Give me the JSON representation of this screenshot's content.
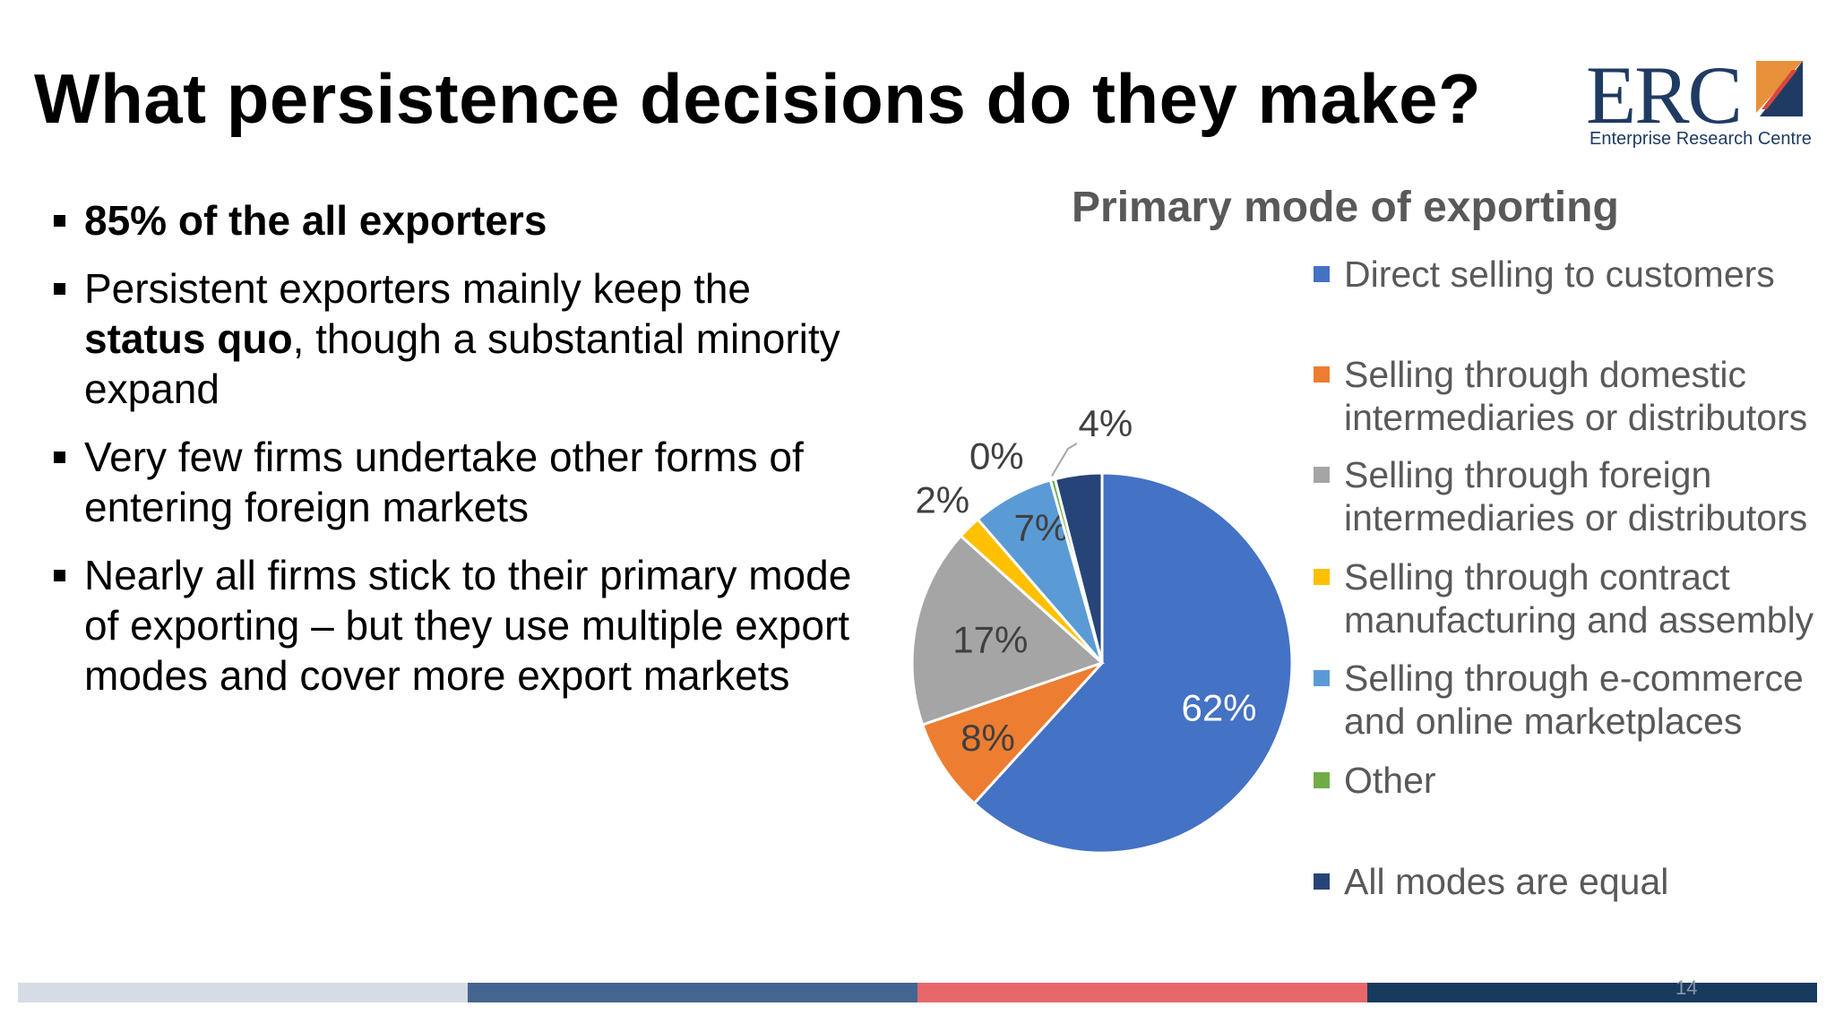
{
  "slide": {
    "title": "What persistence decisions do they make?",
    "page_number": "14"
  },
  "logo": {
    "text": "ERC",
    "subtitle": "Enterprise Research Centre",
    "colors": {
      "navy": "#1f3b63",
      "orange": "#e8913a",
      "red": "#d9473e"
    }
  },
  "bullets": [
    {
      "parts": [
        {
          "text": "85% of the all exporters",
          "bold": true
        }
      ]
    },
    {
      "parts": [
        {
          "text": "Persistent exporters mainly keep the ",
          "bold": false
        },
        {
          "text": "status quo",
          "bold": true
        },
        {
          "text": ", though a substantial minority expand",
          "bold": false
        }
      ]
    },
    {
      "parts": [
        {
          "text": "Very few firms undertake other forms of entering foreign markets",
          "bold": false
        }
      ]
    },
    {
      "parts": [
        {
          "text": "Nearly all firms stick to their primary mode of exporting – but they use multiple export modes and cover more export markets",
          "bold": false
        }
      ]
    }
  ],
  "chart_data": {
    "type": "pie",
    "title": "Primary mode of exporting",
    "start_angle_deg": 0,
    "direction": "clockwise",
    "legend_position": "right",
    "slices": [
      {
        "label": "Direct selling to customers",
        "value": 62,
        "display": "62%",
        "color": "#4472c4"
      },
      {
        "label": "Selling through domestic intermediaries or distributors",
        "value": 8,
        "display": "8%",
        "color": "#ed7d31"
      },
      {
        "label": "Selling through foreign intermediaries or distributors",
        "value": 17,
        "display": "17%",
        "color": "#a5a5a5"
      },
      {
        "label": "Selling through contract manufacturing and assembly",
        "value": 2,
        "display": "2%",
        "color": "#ffc000"
      },
      {
        "label": "Selling through e-commerce and online marketplaces",
        "value": 7,
        "display": "7%",
        "color": "#5b9bd5"
      },
      {
        "label": "Other",
        "value": 0.4,
        "display": "0%",
        "color": "#70ad47"
      },
      {
        "label": "All modes are equal",
        "value": 4,
        "display": "4%",
        "color": "#264478"
      }
    ]
  },
  "footer_bar_colors": [
    "#d6dce4",
    "#44658f",
    "#e8676a",
    "#173a5e"
  ]
}
